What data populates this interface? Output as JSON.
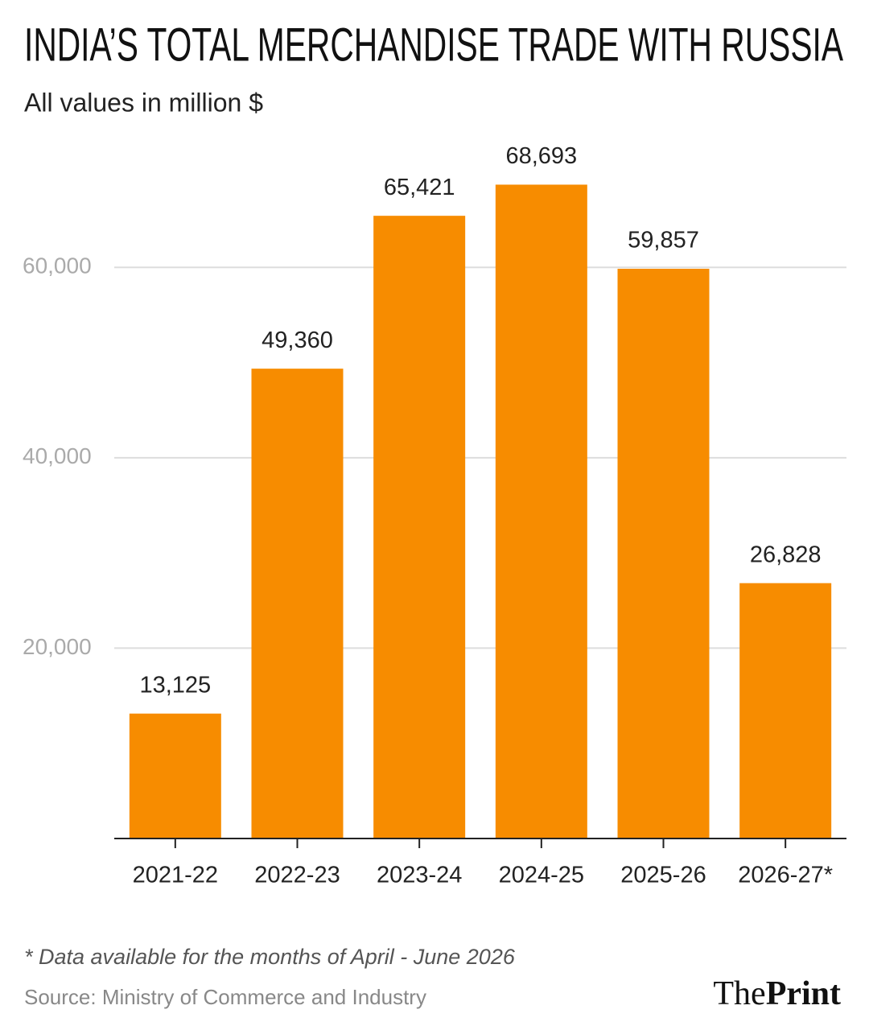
{
  "chart_data": {
    "type": "bar",
    "title": "INDIA’S TOTAL MERCHANDISE TRADE WITH RUSSIA",
    "subtitle": "All values in million $",
    "categories": [
      "2021-22",
      "2022-23",
      "2023-24",
      "2024-25",
      "2025-26",
      "2026-27*"
    ],
    "values": [
      13125,
      49360,
      65421,
      68693,
      59857,
      26828
    ],
    "value_labels": [
      "13,125",
      "49,360",
      "65,421",
      "68,693",
      "59,857",
      "26,828"
    ],
    "color": "#f78c00",
    "ylim": [
      0,
      70000
    ],
    "yticks": [
      {
        "value": 20000,
        "label": "20,000"
      },
      {
        "value": 40000,
        "label": "40,000"
      },
      {
        "value": 60000,
        "label": "60,000"
      }
    ],
    "grid": true,
    "note": "* Data available for the months of April - June 2026",
    "source": "Source: Ministry of Commerce and Industry"
  },
  "brand": {
    "prefix": "The",
    "name": "Print"
  }
}
